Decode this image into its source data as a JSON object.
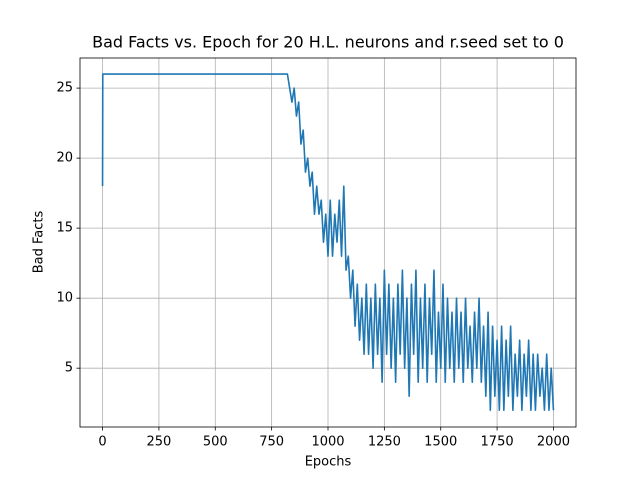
{
  "chart_data": {
    "type": "line",
    "title": "Bad Facts vs. Epoch for 20 H.L. neurons and r.seed set to 0",
    "x_label": "Epochs",
    "y_label": "Bad Facts",
    "x": [
      0,
      1,
      820,
      830,
      840,
      850,
      860,
      870,
      880,
      890,
      900,
      910,
      920,
      930,
      940,
      950,
      960,
      970,
      980,
      990,
      1000,
      1010,
      1020,
      1030,
      1040,
      1050,
      1060,
      1070,
      1080,
      1090,
      1100,
      1110,
      1120,
      1130,
      1140,
      1150,
      1160,
      1170,
      1180,
      1190,
      1200,
      1210,
      1220,
      1230,
      1240,
      1250,
      1260,
      1270,
      1280,
      1290,
      1300,
      1310,
      1320,
      1330,
      1340,
      1350,
      1360,
      1370,
      1380,
      1390,
      1400,
      1410,
      1420,
      1430,
      1440,
      1450,
      1460,
      1470,
      1480,
      1490,
      1500,
      1510,
      1520,
      1530,
      1540,
      1550,
      1560,
      1570,
      1580,
      1590,
      1600,
      1610,
      1620,
      1630,
      1640,
      1650,
      1660,
      1670,
      1680,
      1690,
      1700,
      1710,
      1720,
      1730,
      1740,
      1750,
      1760,
      1770,
      1780,
      1790,
      1800,
      1810,
      1820,
      1830,
      1840,
      1850,
      1860,
      1870,
      1880,
      1890,
      1900,
      1910,
      1920,
      1930,
      1940,
      1950,
      1960,
      1970,
      1980,
      1990,
      2000
    ],
    "series": [
      {
        "name": "Bad Facts",
        "color": "#1f77b4",
        "values": [
          18,
          26,
          26,
          25,
          24,
          25,
          23,
          24,
          21,
          22,
          19,
          20,
          18,
          19,
          16,
          18,
          16,
          17,
          14,
          16,
          13,
          17,
          13,
          16,
          14,
          17,
          13,
          18,
          12,
          13,
          10,
          12,
          8,
          11,
          7,
          10,
          6,
          11,
          6,
          10,
          5,
          11,
          6,
          10,
          4,
          12,
          6,
          11,
          5,
          10,
          4,
          11,
          6,
          12,
          5,
          10,
          3,
          11,
          6,
          12,
          4,
          10,
          5,
          11,
          4,
          10,
          6,
          12,
          4,
          9,
          5,
          11,
          4,
          10,
          5,
          9,
          4,
          10,
          5,
          9,
          4,
          10,
          5,
          8,
          4,
          9,
          5,
          10,
          4,
          8,
          3,
          9,
          2,
          8,
          3,
          7,
          2,
          8,
          2,
          7,
          3,
          8,
          2,
          6,
          3,
          7,
          2,
          6,
          3,
          7,
          2,
          6,
          2,
          6,
          3,
          5,
          2,
          6,
          2,
          5,
          2
        ]
      }
    ],
    "xlim": [
      -100,
      2100
    ],
    "xticks": [
      0,
      250,
      500,
      750,
      1000,
      1250,
      1500,
      1750,
      2000
    ],
    "ylim": [
      0.8,
      27.15
    ],
    "yticks": [
      5,
      10,
      15,
      20,
      25
    ],
    "grid": true
  }
}
